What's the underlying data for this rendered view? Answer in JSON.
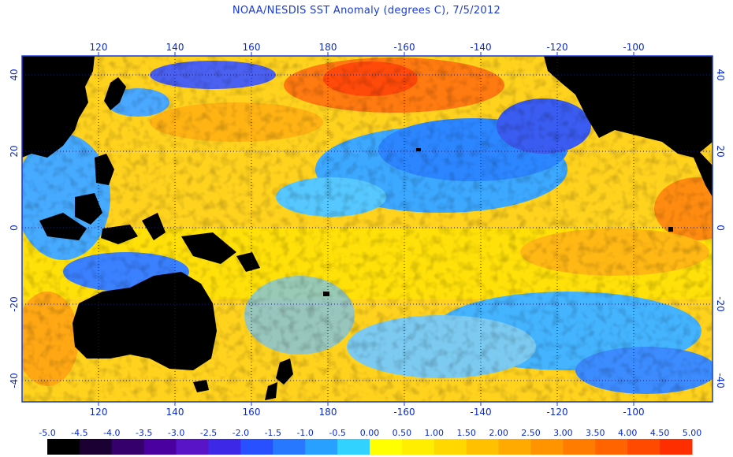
{
  "title": "NOAA/NESDIS SST Anomaly (degrees C), 7/5/2012",
  "map": {
    "lon_ticks_top": [
      "120",
      "140",
      "160",
      "180",
      "-160",
      "-140",
      "-120",
      "-100"
    ],
    "lon_ticks_bottom": [
      "120",
      "140",
      "160",
      "180",
      "-160",
      "-140",
      "-120",
      "-100"
    ],
    "lat_ticks_left": [
      "40",
      "20",
      "0",
      "-20",
      "-40"
    ],
    "lat_ticks_right": [
      "40",
      "20",
      "0",
      "-20",
      "-40"
    ],
    "lon_range": [
      100,
      280
    ],
    "lat_range": [
      -45,
      45
    ],
    "grid": "dotted",
    "land_color": "#000000",
    "frame_color": "#1a3ad8"
  },
  "colorbar": {
    "labels": [
      "-5.0",
      "-4.5",
      "-4.0",
      "-3.5",
      "-3.0",
      "-2.5",
      "-2.0",
      "-1.5",
      "-1.0",
      "-0.5",
      "0.00",
      "0.50",
      "1.00",
      "1.50",
      "2.00",
      "2.50",
      "3.00",
      "3.50",
      "4.00",
      "4.50",
      "5.00"
    ],
    "colors": [
      "#000000",
      "#1a0033",
      "#35006b",
      "#4a00a0",
      "#5a14c8",
      "#3c28e6",
      "#2850ff",
      "#2878ff",
      "#28a0ff",
      "#32d2ff",
      "#ffff00",
      "#ffee00",
      "#ffd800",
      "#ffc000",
      "#ffaa00",
      "#ff9400",
      "#ff7c00",
      "#ff6400",
      "#ff4a00",
      "#ff2e00"
    ]
  }
}
